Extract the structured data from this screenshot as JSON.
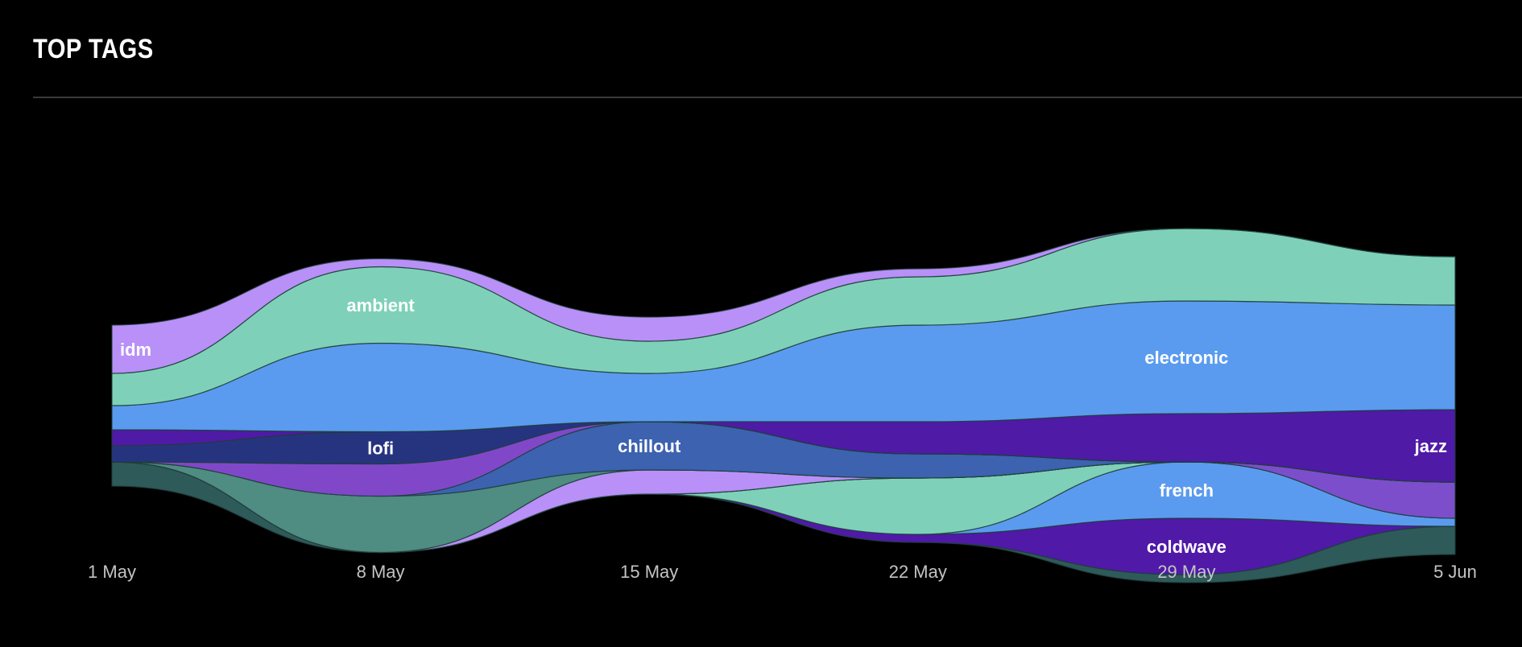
{
  "header": {
    "title": "TOP TAGS"
  },
  "chart_data": {
    "type": "area",
    "subtype": "streamgraph",
    "title": "TOP TAGS",
    "xlabel": "",
    "ylabel": "",
    "grid": false,
    "legend": "none",
    "x_ticks": [
      "1 May",
      "8 May",
      "15 May",
      "22 May",
      "29 May",
      "5 Jun"
    ],
    "x": [
      "1 May",
      "8 May",
      "15 May",
      "22 May",
      "29 May",
      "5 Jun"
    ],
    "series": [
      {
        "name": "",
        "color": "#2e5a5a",
        "values": [
          0.3,
          0,
          0,
          0,
          0.1,
          0.35
        ]
      },
      {
        "name": "coldwave",
        "color": "#5019a8",
        "values": [
          0,
          0,
          0,
          0.1,
          0.7,
          0
        ]
      },
      {
        "name": "french",
        "color": "#5b9bef",
        "values": [
          0,
          0,
          0,
          0,
          0.7,
          0.1
        ]
      },
      {
        "name": "",
        "color": "#7ed1b8",
        "values": [
          0,
          0,
          0,
          0.7,
          0,
          0
        ]
      },
      {
        "name": "",
        "color": "#7c4ecb",
        "values": [
          0,
          0,
          0,
          0,
          0,
          0.45
        ]
      },
      {
        "name": "",
        "color": "#b890f7",
        "values": [
          0,
          0,
          0.3,
          0,
          0,
          0
        ]
      },
      {
        "name": "",
        "color": "#4f8c82",
        "values": [
          0,
          0.7,
          0,
          0,
          0,
          0
        ]
      },
      {
        "name": "chillout",
        "color": "#3c62b0",
        "values": [
          0,
          0,
          0.6,
          0.3,
          0,
          0
        ]
      },
      {
        "name": "",
        "color": "#8048c9",
        "values": [
          0,
          0.4,
          0,
          0,
          0,
          0
        ]
      },
      {
        "name": "lofi",
        "color": "#263480",
        "values": [
          0.2,
          0.4,
          0,
          0,
          0,
          0
        ]
      },
      {
        "name": "jazz",
        "color": "#4f1aa6",
        "values": [
          0.2,
          0,
          0,
          0.4,
          0.6,
          0.9
        ]
      },
      {
        "name": "electronic",
        "color": "#5a9bef",
        "values": [
          0.3,
          1.1,
          0.6,
          1.2,
          1.4,
          1.3
        ]
      },
      {
        "name": "ambient",
        "color": "#7ed1b8",
        "values": [
          0.4,
          0.95,
          0.4,
          0.6,
          0.9,
          0.6
        ]
      },
      {
        "name": "idm",
        "color": "#b890f7",
        "values": [
          0.6,
          0.1,
          0.3,
          0.1,
          0,
          0
        ]
      }
    ]
  }
}
